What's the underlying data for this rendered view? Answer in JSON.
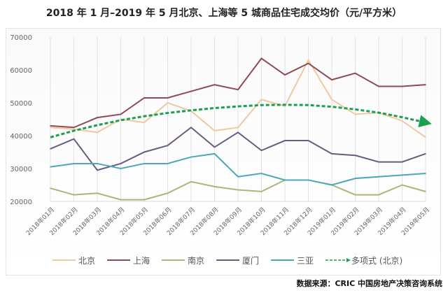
{
  "chart_data": {
    "type": "line",
    "title": "2018 年 1 月–2019 年 5 月北京、上海等 5 城商品住宅成交均价（元/平方米）",
    "xlabel": "",
    "ylabel": "",
    "ylim": [
      20000,
      70000
    ],
    "yticks": [
      "20000",
      "30000",
      "40000",
      "50000",
      "60000",
      "70000"
    ],
    "grid": "vertical",
    "legend": "bottom",
    "categories": [
      "2018年01月",
      "2018年02月",
      "2018年03月",
      "2018年04月",
      "2018年05月",
      "2018年06月",
      "2018年07月",
      "2018年08月",
      "2018年09月",
      "2018年10月",
      "2018年11月",
      "2018年12月",
      "2019年01月",
      "2019年02月",
      "2019年03月",
      "2019年04月",
      "2019年05月"
    ],
    "series": [
      {
        "name": "北京",
        "color": "#f0c8a0",
        "values": [
          42500,
          42000,
          41000,
          45000,
          44000,
          50000,
          47500,
          41500,
          42500,
          51000,
          49000,
          63000,
          51000,
          46500,
          47000,
          44500,
          39500
        ]
      },
      {
        "name": "上海",
        "color": "#8e4a55",
        "values": [
          43000,
          42500,
          45500,
          46500,
          51500,
          51500,
          53500,
          55500,
          54000,
          63500,
          58500,
          62000,
          57000,
          59000,
          55000,
          55000,
          55500
        ]
      },
      {
        "name": "南京",
        "color": "#a8b878",
        "values": [
          24000,
          22000,
          22500,
          20500,
          20500,
          22500,
          26000,
          24500,
          23500,
          23000,
          26500,
          26500,
          25000,
          22000,
          22000,
          25000,
          23000
        ]
      },
      {
        "name": "厦门",
        "color": "#6c5a80",
        "values": [
          36000,
          39000,
          29500,
          31500,
          35000,
          37000,
          42500,
          36500,
          41000,
          35500,
          38500,
          38500,
          34500,
          34000,
          32000,
          32000,
          34500
        ]
      },
      {
        "name": "三亚",
        "color": "#4aa8b8",
        "values": [
          30500,
          31500,
          31500,
          30000,
          31500,
          31500,
          33500,
          34500,
          27500,
          28500,
          26500,
          26500,
          25000,
          27000,
          27500,
          28000,
          28500
        ]
      }
    ],
    "trendline": {
      "name": "多项式 (北京)",
      "color": "#1aa050",
      "values": [
        39500,
        41500,
        43200,
        44700,
        45900,
        46900,
        47700,
        48400,
        48900,
        49300,
        49400,
        49300,
        48800,
        48000,
        47000,
        45600,
        44000
      ]
    }
  },
  "source": "数据来源：CRIC 中国房地产决策咨询系统"
}
